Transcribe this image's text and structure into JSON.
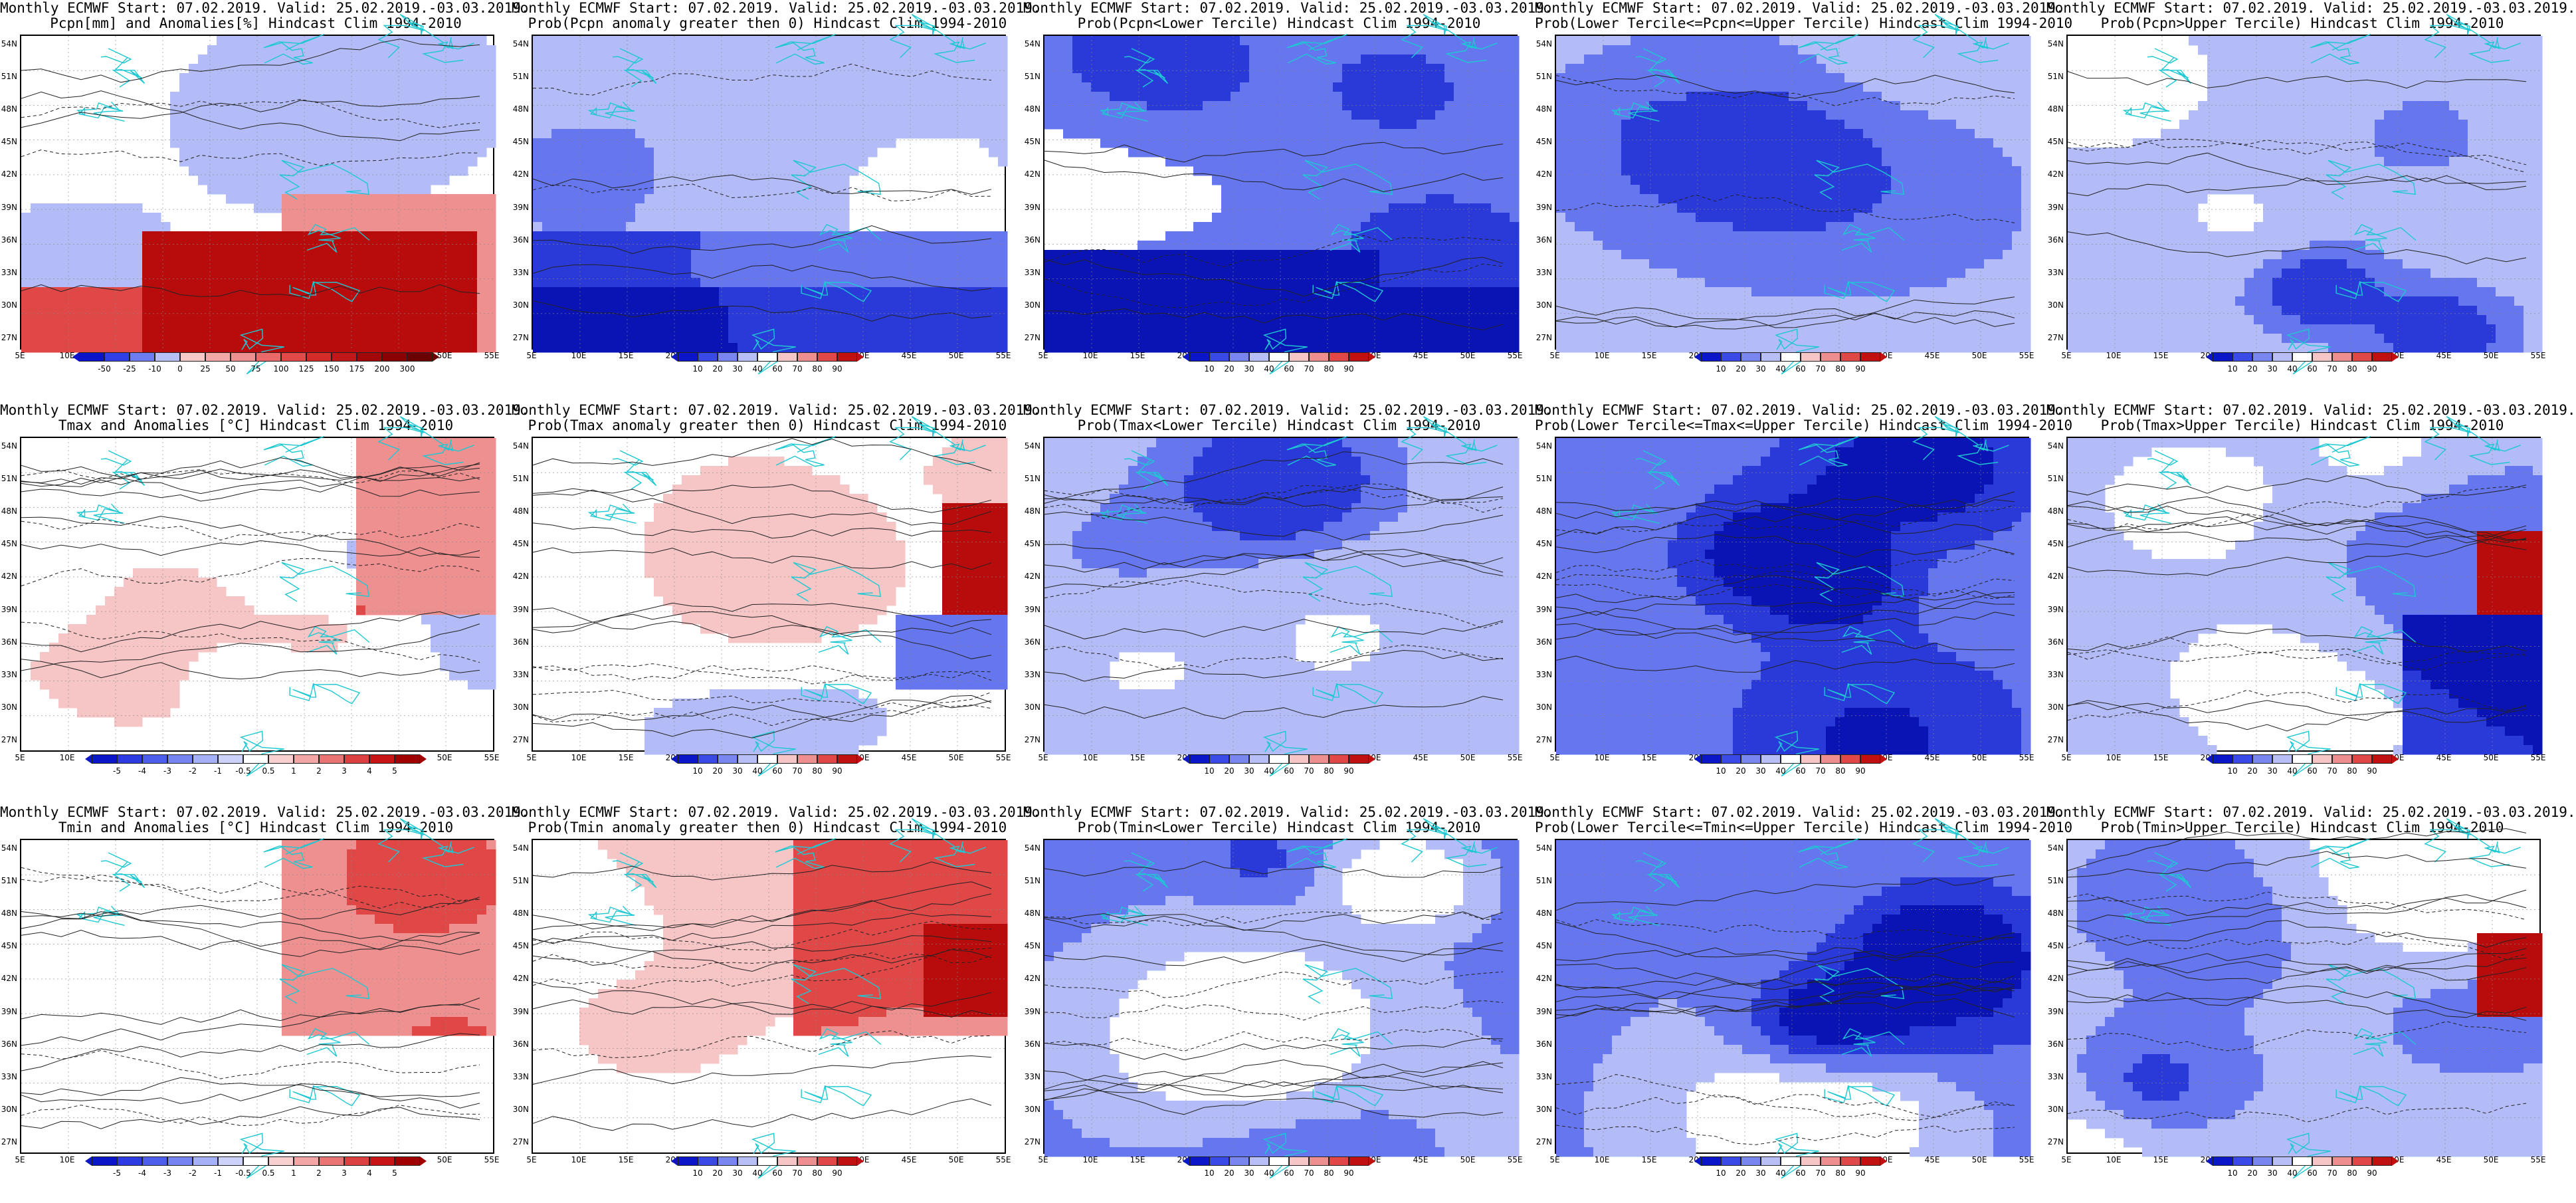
{
  "panels": [
    {
      "row": 0,
      "col": 0,
      "title1": "Monthly ECMWF Start: 07.02.2019. Valid: 25.02.2019.-03.03.2019.",
      "title2": "Pcpn[mm] and Anomalies[%] Hindcast Clim 1994-2010",
      "scheme": "anom_pcpn",
      "colorbar": {
        "labels": [
          "-50",
          "-25",
          "-10",
          "0",
          "25",
          "50",
          "75",
          "100",
          "125",
          "150",
          "175",
          "200",
          "300"
        ],
        "colors": [
          "#0b14c8",
          "#3040e6",
          "#6d7cf0",
          "#b7c0f6",
          "#f7c9c9",
          "#f4a9a9",
          "#f08f8f",
          "#ea6a6a",
          "#e24a4a",
          "#d42b2b",
          "#c01818",
          "#a30808",
          "#8a0000",
          "#6a0000"
        ]
      }
    },
    {
      "row": 0,
      "col": 1,
      "title1": "Monthly ECMWF Start: 07.02.2019. Valid: 25.02.2019.-03.03.2019.",
      "title2": "Prob(Pcpn anomaly greater then 0) Hindcast Clim 1994-2010",
      "scheme": "prob_blue_low",
      "colorbar": {
        "labels": [
          "10",
          "20",
          "30",
          "40",
          "60",
          "70",
          "80",
          "90"
        ],
        "colors": [
          "#0a16c8",
          "#3a4ae6",
          "#7a86f0",
          "#b7bff6",
          "#ffffff",
          "#f6c6c6",
          "#ee8e8e",
          "#e04848",
          "#c01010"
        ]
      }
    },
    {
      "row": 0,
      "col": 2,
      "title1": "Monthly ECMWF Start: 07.02.2019. Valid: 25.02.2019.-03.03.2019.",
      "title2": "Prob(Pcpn<Lower Tercile) Hindcast Clim 1994-2010",
      "scheme": "prob_blue_heavy",
      "colorbar": {
        "labels": [
          "10",
          "20",
          "30",
          "40",
          "60",
          "70",
          "80",
          "90"
        ],
        "colors": [
          "#0a16c8",
          "#3a4ae6",
          "#7a86f0",
          "#b7bff6",
          "#ffffff",
          "#f6c6c6",
          "#ee8e8e",
          "#e04848",
          "#c01010"
        ]
      }
    },
    {
      "row": 0,
      "col": 3,
      "title1": "Monthly ECMWF Start: 07.02.2019. Valid: 25.02.2019.-03.03.2019.",
      "title2": "Prob(Lower Tercile<=Pcpn<=Upper Tercile) Hindcast Clim 1994-2010",
      "scheme": "prob_blue_mid",
      "colorbar": {
        "labels": [
          "10",
          "20",
          "30",
          "40",
          "60",
          "70",
          "80",
          "90"
        ],
        "colors": [
          "#0a16c8",
          "#3a4ae6",
          "#7a86f0",
          "#b7bff6",
          "#ffffff",
          "#f6c6c6",
          "#ee8e8e",
          "#e04848",
          "#c01010"
        ]
      }
    },
    {
      "row": 0,
      "col": 4,
      "title1": "Monthly ECMWF Start: 07.02.2019. Valid: 25.02.2019.-03.03.2019.",
      "title2": "Prob(Pcpn>Upper Tercile) Hindcast Clim 1994-2010",
      "scheme": "prob_blue_mid",
      "colorbar": {
        "labels": [
          "10",
          "20",
          "30",
          "40",
          "60",
          "70",
          "80",
          "90"
        ],
        "colors": [
          "#0a16c8",
          "#3a4ae6",
          "#7a86f0",
          "#b7bff6",
          "#ffffff",
          "#f6c6c6",
          "#ee8e8e",
          "#e04848",
          "#c01010"
        ]
      }
    },
    {
      "row": 1,
      "col": 0,
      "title1": "Monthly ECMWF Start: 07.02.2019. Valid: 25.02.2019.-03.03.2019.",
      "title2": "Tmax and Anomalies [°C] Hindcast Clim 1994-2010",
      "scheme": "anom_temp",
      "colorbar": {
        "labels": [
          "-5",
          "-4",
          "-3",
          "-2",
          "-1",
          "-0.5",
          "0.5",
          "1",
          "2",
          "3",
          "4",
          "5"
        ],
        "colors": [
          "#0a16c8",
          "#2c3ce0",
          "#4e5eec",
          "#7684f2",
          "#a6b0f6",
          "#ccd2fa",
          "#ffffff",
          "#f8d0d0",
          "#f2a6a6",
          "#e87474",
          "#dc4040",
          "#c81414",
          "#a00000"
        ]
      }
    },
    {
      "row": 1,
      "col": 1,
      "title1": "Monthly ECMWF Start: 07.02.2019. Valid: 25.02.2019.-03.03.2019.",
      "title2": "Prob(Tmax anomaly greater then 0) Hindcast Clim 1994-2010",
      "scheme": "prob_red_east",
      "colorbar": {
        "labels": [
          "10",
          "20",
          "30",
          "40",
          "60",
          "70",
          "80",
          "90"
        ],
        "colors": [
          "#0a16c8",
          "#3a4ae6",
          "#7a86f0",
          "#b7bff6",
          "#ffffff",
          "#f6c6c6",
          "#ee8e8e",
          "#e04848",
          "#c01010"
        ]
      }
    },
    {
      "row": 1,
      "col": 2,
      "title1": "Monthly ECMWF Start: 07.02.2019. Valid: 25.02.2019.-03.03.2019.",
      "title2": "Prob(Tmax<Lower Tercile) Hindcast Clim 1994-2010",
      "scheme": "prob_blue_mid",
      "colorbar": {
        "labels": [
          "10",
          "20",
          "30",
          "40",
          "60",
          "70",
          "80",
          "90"
        ],
        "colors": [
          "#0a16c8",
          "#3a4ae6",
          "#7a86f0",
          "#b7bff6",
          "#ffffff",
          "#f6c6c6",
          "#ee8e8e",
          "#e04848",
          "#c01010"
        ]
      }
    },
    {
      "row": 1,
      "col": 3,
      "title1": "Monthly ECMWF Start: 07.02.2019. Valid: 25.02.2019.-03.03.2019.",
      "title2": "Prob(Lower Tercile<=Tmax<=Upper Tercile) Hindcast Clim 1994-2010",
      "scheme": "prob_blue_heavy2",
      "colorbar": {
        "labels": [
          "10",
          "20",
          "30",
          "40",
          "60",
          "70",
          "80",
          "90"
        ],
        "colors": [
          "#0a16c8",
          "#3a4ae6",
          "#7a86f0",
          "#b7bff6",
          "#ffffff",
          "#f6c6c6",
          "#ee8e8e",
          "#e04848",
          "#c01010"
        ]
      }
    },
    {
      "row": 1,
      "col": 4,
      "title1": "Monthly ECMWF Start: 07.02.2019. Valid: 25.02.2019.-03.03.2019.",
      "title2": "Prob(Tmax>Upper Tercile) Hindcast Clim 1994-2010",
      "scheme": "prob_mixed",
      "colorbar": {
        "labels": [
          "10",
          "20",
          "30",
          "40",
          "60",
          "70",
          "80",
          "90"
        ],
        "colors": [
          "#0a16c8",
          "#3a4ae6",
          "#7a86f0",
          "#b7bff6",
          "#ffffff",
          "#f6c6c6",
          "#ee8e8e",
          "#e04848",
          "#c01010"
        ]
      }
    },
    {
      "row": 2,
      "col": 0,
      "title1": "Monthly ECMWF Start: 07.02.2019. Valid: 25.02.2019.-03.03.2019.",
      "title2": "Tmin and Anomalies [°C] Hindcast Clim 1994-2010",
      "scheme": "anom_temp_red",
      "colorbar": {
        "labels": [
          "-5",
          "-4",
          "-3",
          "-2",
          "-1",
          "-0.5",
          "0.5",
          "1",
          "2",
          "3",
          "4",
          "5"
        ],
        "colors": [
          "#0a16c8",
          "#2c3ce0",
          "#4e5eec",
          "#7684f2",
          "#a6b0f6",
          "#ccd2fa",
          "#ffffff",
          "#f8d0d0",
          "#f2a6a6",
          "#e87474",
          "#dc4040",
          "#c81414",
          "#a00000"
        ]
      }
    },
    {
      "row": 2,
      "col": 1,
      "title1": "Monthly ECMWF Start: 07.02.2019. Valid: 25.02.2019.-03.03.2019.",
      "title2": "Prob(Tmin anomaly greater then 0) Hindcast Clim 1994-2010",
      "scheme": "prob_red_broad",
      "colorbar": {
        "labels": [
          "10",
          "20",
          "30",
          "40",
          "60",
          "70",
          "80",
          "90"
        ],
        "colors": [
          "#0a16c8",
          "#3a4ae6",
          "#7a86f0",
          "#b7bff6",
          "#ffffff",
          "#f6c6c6",
          "#ee8e8e",
          "#e04848",
          "#c01010"
        ]
      }
    },
    {
      "row": 2,
      "col": 2,
      "title1": "Monthly ECMWF Start: 07.02.2019. Valid: 25.02.2019.-03.03.2019.",
      "title2": "Prob(Tmin<Lower Tercile) Hindcast Clim 1994-2010",
      "scheme": "prob_blue_heavy2",
      "colorbar": {
        "labels": [
          "10",
          "20",
          "30",
          "40",
          "60",
          "70",
          "80",
          "90"
        ],
        "colors": [
          "#0a16c8",
          "#3a4ae6",
          "#7a86f0",
          "#b7bff6",
          "#ffffff",
          "#f6c6c6",
          "#ee8e8e",
          "#e04848",
          "#c01010"
        ]
      }
    },
    {
      "row": 2,
      "col": 3,
      "title1": "Monthly ECMWF Start: 07.02.2019. Valid: 25.02.2019.-03.03.2019.",
      "title2": "Prob(Lower Tercile<=Tmin<=Upper Tercile) Hindcast Clim 1994-2010",
      "scheme": "prob_blue_heavy2",
      "colorbar": {
        "labels": [
          "10",
          "20",
          "30",
          "40",
          "60",
          "70",
          "80",
          "90"
        ],
        "colors": [
          "#0a16c8",
          "#3a4ae6",
          "#7a86f0",
          "#b7bff6",
          "#ffffff",
          "#f6c6c6",
          "#ee8e8e",
          "#e04848",
          "#c01010"
        ]
      }
    },
    {
      "row": 2,
      "col": 4,
      "title1": "Monthly ECMWF Start: 07.02.2019. Valid: 25.02.2019.-03.03.2019.",
      "title2": "Prob(Tmin>Upper Tercile) Hindcast Clim 1994-2010",
      "scheme": "prob_mixed_red",
      "colorbar": {
        "labels": [
          "10",
          "20",
          "30",
          "40",
          "60",
          "70",
          "80",
          "90"
        ],
        "colors": [
          "#0a16c8",
          "#3a4ae6",
          "#7a86f0",
          "#b7bff6",
          "#ffffff",
          "#f6c6c6",
          "#ee8e8e",
          "#e04848",
          "#c01010"
        ]
      }
    }
  ],
  "lat_labels": [
    "54N",
    "51N",
    "48N",
    "45N",
    "42N",
    "39N",
    "36N",
    "33N",
    "30N",
    "27N"
  ],
  "lon_labels": [
    "5E",
    "10E",
    "15E",
    "20E",
    "25E",
    "30E",
    "35E",
    "40E",
    "45E",
    "50E",
    "55E"
  ]
}
